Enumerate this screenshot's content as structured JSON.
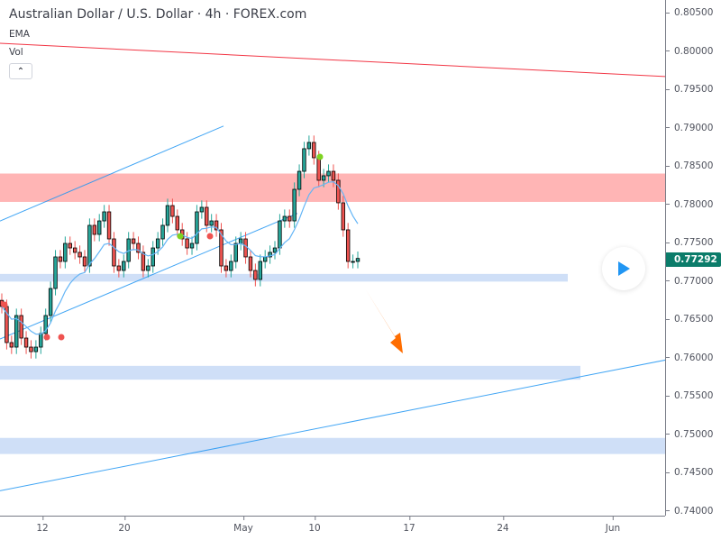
{
  "header": {
    "title": "Australian Dollar / U.S. Dollar · 4h · FOREX.com",
    "indicators": [
      "EMA",
      "Vol"
    ],
    "collapse_icon": "chevron-up-icon"
  },
  "play_button": {
    "icon": "play-icon",
    "color": "#2196f3"
  },
  "colors": {
    "up": "#26a69a",
    "down": "#ef5350",
    "body_outline": "#000000",
    "ema": "#64b5f6",
    "red_line": "#f23645",
    "red_zone": "#ffb5b5",
    "blue_zone": "#cfdff7",
    "trend": "#2196f3",
    "arrow": "#ff6d00",
    "last_price_bg": "#0b7c6a"
  },
  "chart_data": {
    "type": "candlestick",
    "title": "Australian Dollar / U.S. Dollar · 4h · FOREX.com",
    "ylim": [
      0.7395,
      0.8055
    ],
    "y_ticks": [
      "0.80500",
      "0.80000",
      "0.79500",
      "0.79000",
      "0.78500",
      "0.78000",
      "0.77500",
      "0.77000",
      "0.76500",
      "0.76000",
      "0.75500",
      "0.75000",
      "0.74500",
      "0.74000"
    ],
    "x_ticks": [
      "12",
      "20",
      "May",
      "10",
      "17",
      "24",
      "Jun"
    ],
    "last_price": "0.77292",
    "closes": [
      0.76665,
      0.76194,
      0.76135,
      0.76547,
      0.76253,
      0.76135,
      0.76076,
      0.76135,
      0.76312,
      0.76547,
      0.769,
      0.77312,
      0.77253,
      0.77488,
      0.77429,
      0.77371,
      0.77312,
      0.77194,
      0.77724,
      0.77606,
      0.77782,
      0.779,
      0.77547,
      0.77194,
      0.77135,
      0.77253,
      0.77547,
      0.77488,
      0.77371,
      0.77135,
      0.77194,
      0.77429,
      0.77547,
      0.77724,
      0.77982,
      0.77841,
      0.77665,
      0.77547,
      0.77429,
      0.77488,
      0.779,
      0.77959,
      0.77724,
      0.77782,
      0.77665,
      0.77194,
      0.77135,
      0.77253,
      0.77488,
      0.77547,
      0.77312,
      0.77135,
      0.77018,
      0.77253,
      0.77312,
      0.77371,
      0.77429,
      0.77782,
      0.77841,
      0.77782,
      0.78194,
      0.78429,
      0.78724,
      0.78806,
      0.78606,
      0.78312,
      0.78371,
      0.78429,
      0.78312,
      0.78018,
      0.77665,
      0.77253,
      0.77253,
      0.77292
    ],
    "zones": [
      {
        "color": "red",
        "top": 0.784,
        "bottom": 0.7803
      },
      {
        "color": "blue",
        "top": 0.7709,
        "bottom": 0.7699
      },
      {
        "color": "blue",
        "top": 0.7589,
        "bottom": 0.7571
      },
      {
        "color": "blue",
        "top": 0.7495,
        "bottom": 0.7474
      }
    ],
    "lines": [
      {
        "name": "red-trendline",
        "from": 0.801,
        "to": 0.79665
      },
      {
        "name": "upper-channel",
        "from": 0.7778,
        "to": 0.7902
      },
      {
        "name": "lower-channel",
        "from": 0.7624,
        "to": 0.7788
      },
      {
        "name": "long-trendline",
        "from": 0.7426,
        "to": 0.7597
      }
    ],
    "annotation": "down-arrow"
  }
}
